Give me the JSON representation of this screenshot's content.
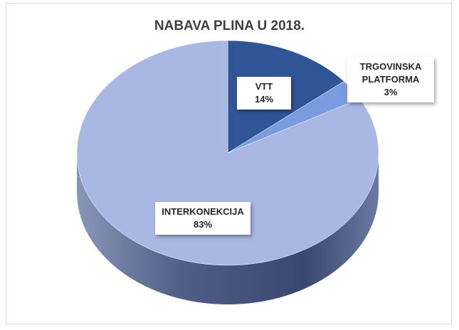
{
  "chart_data": {
    "type": "pie",
    "title": "NABAVA PLINA U 2018.",
    "categories": [
      "VTT",
      "TRGOVINSKA PLATFORMA",
      "INTERKONEKCIJA"
    ],
    "values": [
      14,
      3,
      83
    ],
    "value_labels": [
      "14%",
      "3%",
      "83%"
    ],
    "colors": [
      "#2f5597",
      "#7b9be0",
      "#a9b8e2"
    ]
  }
}
